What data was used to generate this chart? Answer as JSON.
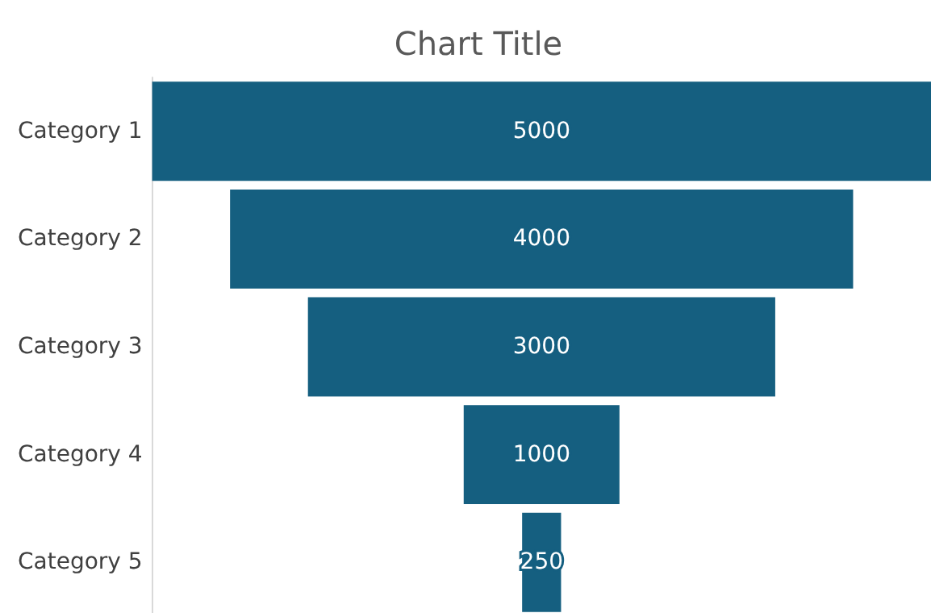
{
  "chart_data": {
    "type": "other",
    "title": "Chart Title",
    "categories": [
      "Category 1",
      "Category 2",
      "Category 3",
      "Category 4",
      "Category 5"
    ],
    "values": [
      5000,
      4000,
      3000,
      1000,
      250
    ],
    "color": "#155f80",
    "data_labels": true
  }
}
